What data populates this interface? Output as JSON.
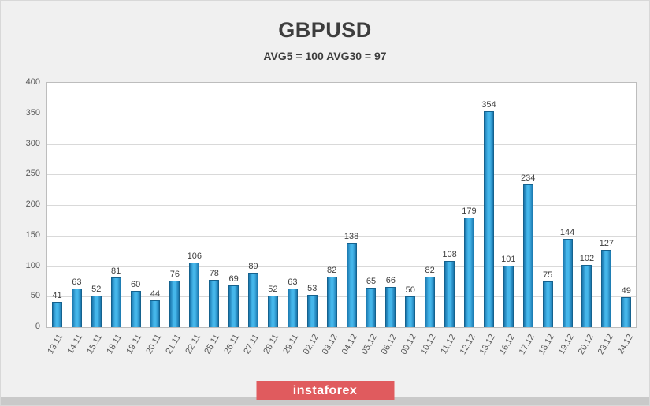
{
  "chart_data": {
    "type": "bar",
    "title": "GBPUSD",
    "subtitle": "AVG5 = 100 AVG30 = 97",
    "categories": [
      "13.11",
      "14.11",
      "15.11",
      "18.11",
      "19.11",
      "20.11",
      "21.11",
      "22.11",
      "25.11",
      "26.11",
      "27.11",
      "28.11",
      "29.11",
      "02.12",
      "03.12",
      "04.12",
      "05.12",
      "06.12",
      "09.12",
      "10.12",
      "11.12",
      "12.12",
      "13.12",
      "16.12",
      "17.12",
      "18.12",
      "19.12",
      "20.12",
      "23.12",
      "24.12"
    ],
    "values": [
      41,
      63,
      52,
      81,
      60,
      44,
      76,
      106,
      78,
      69,
      89,
      52,
      63,
      53,
      82,
      138,
      65,
      66,
      50,
      82,
      108,
      179,
      354,
      101,
      234,
      75,
      144,
      102,
      127,
      49
    ],
    "xlabel": "",
    "ylabel": "",
    "ylim": [
      0,
      400
    ],
    "yticks": [
      0,
      50,
      100,
      150,
      200,
      250,
      300,
      350,
      400
    ],
    "grid": true,
    "legend_position": "none",
    "value_labels": true,
    "bar_color": "#45b6ea",
    "bar_color_dark": "#1a76ad",
    "bar_border_color": "#15628e"
  },
  "watermark": {
    "label": "instaforex",
    "background": "#e05b5e",
    "text_color": "#ffffff"
  }
}
